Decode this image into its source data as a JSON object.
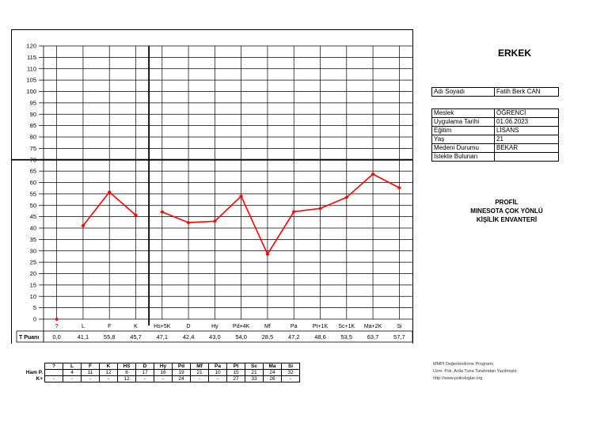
{
  "chart_data": {
    "type": "line",
    "ylim": [
      0,
      120
    ],
    "yticks": [
      0,
      5,
      10,
      15,
      20,
      25,
      30,
      35,
      40,
      45,
      50,
      55,
      60,
      65,
      70,
      75,
      80,
      85,
      90,
      95,
      100,
      105,
      110,
      115,
      120
    ],
    "categories": [
      "?",
      "L",
      "F",
      "K",
      "Hs+5K",
      "D",
      "Hy",
      "Pd+4K",
      "Mf",
      "Pa",
      "Pt+1K",
      "Sc+1K",
      "Ma+2K",
      "Si"
    ],
    "values": [
      0.0,
      41.1,
      55.8,
      45.7,
      47.1,
      42.4,
      43.0,
      54.0,
      28.5,
      47.2,
      48.6,
      53.5,
      63.7,
      57.7
    ],
    "value_labels": [
      "0,0",
      "41,1",
      "55,8",
      "45,7",
      "47,1",
      "42,4",
      "43,0",
      "54,0",
      "28,5",
      "47,2",
      "48,6",
      "53,5",
      "63,7",
      "57,7"
    ],
    "row_label": "T Puanı",
    "reference_line": 70,
    "line_color": "#ff0000",
    "grid": true
  },
  "gender": "ERKEK",
  "name_row": {
    "label": "Adı Soyadı",
    "value": "Fatih Berk CAN"
  },
  "info_rows": [
    {
      "label": "Meslek",
      "value": "ÖĞRENCİ"
    },
    {
      "label": "Uygulama Tarihi",
      "value": "01.06.2023"
    },
    {
      "label": "Eğitim",
      "value": "LİSANS"
    },
    {
      "label": "Yaş",
      "value": "21"
    },
    {
      "label": "Medeni Durumu",
      "value": "BEKAR"
    },
    {
      "label": "İstekte Bulunan",
      "value": ""
    }
  ],
  "profile_title": [
    "PROFİL",
    "MINESOTA ÇOK YÖNLÜ",
    "KİŞİLİK ENVANTERİ"
  ],
  "raw_table": {
    "headers": [
      "?",
      "L",
      "F",
      "K",
      "HS",
      "D",
      "Hy",
      "Pd",
      "Mf",
      "Pa",
      "Pt",
      "Sc",
      "Ma",
      "Si"
    ],
    "ham_label": "Ham P.",
    "ham": [
      "",
      "4",
      "11",
      "12",
      "6",
      "17",
      "16",
      "19",
      "21",
      "10",
      "15",
      "21",
      "24",
      "32"
    ],
    "k_label": "K+",
    "k": [
      "-",
      "-",
      "-",
      "-",
      "12",
      "-",
      "-",
      "24",
      "-",
      "-",
      "27",
      "33",
      "26",
      "-"
    ]
  },
  "footer": [
    "MMPI Değerlendirme Programı",
    "Uzm. Psk. Arda Tuna Tarafından Yazılmıştır.",
    "http://www.psikologlar.org"
  ]
}
